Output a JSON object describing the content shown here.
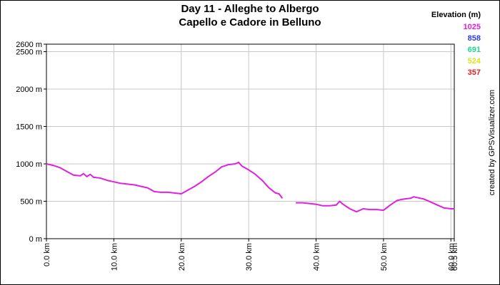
{
  "chart_data": {
    "type": "line",
    "title": [
      "Day 11 - Alleghe to  Albergo",
      "Capello e Cadore in Belluno"
    ],
    "credit": "created by GPSVisualizer.com",
    "legend": {
      "title": "Elevation (m)",
      "values": [
        1025,
        858,
        691,
        524,
        357
      ],
      "colors": [
        "#e020e0",
        "#2a3ce6",
        "#20d890",
        "#e0e020",
        "#e02020"
      ]
    },
    "x": [
      0,
      1,
      2,
      3,
      4,
      5,
      5.5,
      6,
      6.5,
      7,
      8,
      9,
      10,
      11,
      12,
      13,
      14,
      15,
      16,
      17,
      18,
      19,
      20,
      21,
      22,
      23,
      24,
      25,
      26,
      27,
      28,
      28.5,
      29,
      30,
      31,
      32,
      33,
      34,
      34.5,
      35,
      36,
      37,
      38,
      39,
      40,
      41,
      42,
      43,
      43.5,
      44,
      45,
      46,
      47,
      48,
      49,
      50,
      51,
      52,
      53,
      54,
      54.5,
      55,
      56,
      57,
      58,
      59,
      60,
      60.5
    ],
    "series": [
      {
        "values": [
          1000,
          980,
          950,
          900,
          850,
          840,
          870,
          830,
          860,
          820,
          810,
          780,
          760,
          740,
          730,
          720,
          700,
          680,
          630,
          620,
          620,
          610,
          600,
          650,
          700,
          760,
          830,
          890,
          960,
          990,
          1000,
          1020,
          970,
          920,
          860,
          780,
          680,
          610,
          600,
          540,
          null,
          480,
          480,
          470,
          460,
          440,
          440,
          450,
          500,
          460,
          400,
          360,
          400,
          390,
          390,
          380,
          450,
          510,
          530,
          540,
          560,
          550,
          530,
          490,
          450,
          410,
          400,
          400
        ]
      }
    ],
    "xlim": [
      0,
      60.5
    ],
    "ylim": [
      0,
      2600
    ],
    "xticks": [
      {
        "value": 0,
        "label": "0.0 km"
      },
      {
        "value": 10,
        "label": "10.0 km"
      },
      {
        "value": 20,
        "label": "20.0 km"
      },
      {
        "value": 30,
        "label": "30.0 km"
      },
      {
        "value": 40,
        "label": "40.0 km"
      },
      {
        "value": 50,
        "label": "50.0 km"
      },
      {
        "value": 60,
        "label": "60.0 km"
      },
      {
        "value": 60.5,
        "label": "60.5 km"
      }
    ],
    "yticks": [
      {
        "value": 0,
        "label": "0 m"
      },
      {
        "value": 500,
        "label": "500 m"
      },
      {
        "value": 1000,
        "label": "1000 m"
      },
      {
        "value": 1500,
        "label": "1500 m"
      },
      {
        "value": 2000,
        "label": "2000 m"
      },
      {
        "value": 2500,
        "label": "2500 m"
      },
      {
        "value": 2600,
        "label": "2600 m"
      }
    ],
    "grid": true
  }
}
